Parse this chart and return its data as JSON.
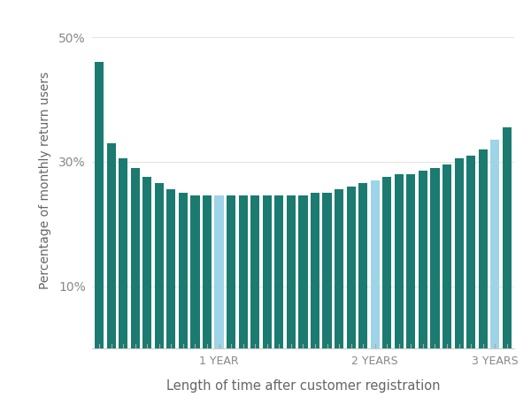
{
  "values": [
    46,
    33,
    30.5,
    29,
    27.5,
    26.5,
    25.5,
    25,
    24.5,
    24.5,
    24.5,
    24.5,
    24.5,
    24.5,
    24.5,
    24.5,
    24.5,
    24.5,
    25,
    25,
    25.5,
    26,
    26.5,
    27,
    27.5,
    28,
    28,
    28.5,
    29,
    29.5,
    30.5,
    31,
    32,
    33.5,
    35.5
  ],
  "light_blue_indices": [
    10,
    23,
    33
  ],
  "teal_color": "#1b7b70",
  "light_blue_color": "#9dd4e8",
  "ylabel": "Percentage of monthly return users",
  "xlabel": "Length of time after customer registration",
  "ytick_labels": [
    "10%",
    "30%",
    "50%"
  ],
  "ytick_values": [
    10,
    30,
    50
  ],
  "xtick_positions": [
    10,
    23,
    33
  ],
  "xtick_labels": [
    "1 YEAR",
    "2 YEARS",
    "3 YEARS"
  ],
  "background_color": "#ffffff",
  "bar_width": 0.75,
  "ymax": 54
}
